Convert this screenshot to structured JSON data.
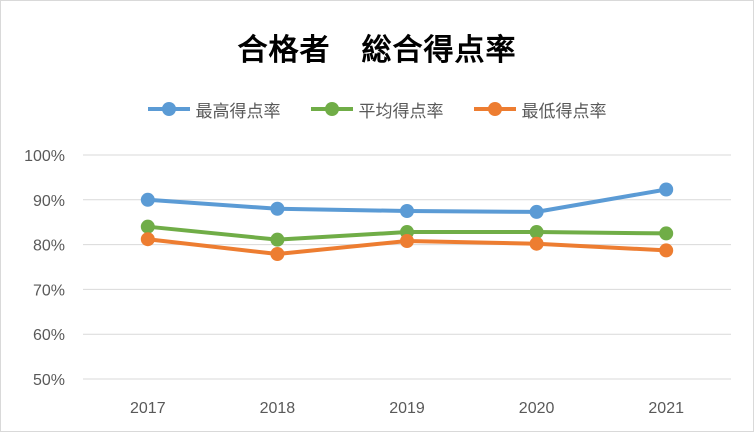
{
  "chart_data": {
    "type": "line",
    "title": "合格者　総合得点率",
    "categories": [
      "2017",
      "2018",
      "2019",
      "2020",
      "2021"
    ],
    "ylim": [
      50,
      100
    ],
    "yticks": [
      50,
      60,
      70,
      80,
      90,
      100
    ],
    "ytick_labels": [
      "50%",
      "60%",
      "70%",
      "80%",
      "90%",
      "100%"
    ],
    "grid": true,
    "legend_position": "top",
    "series": [
      {
        "name": "最高得点率",
        "color": "#5b9bd5",
        "values": [
          90.0,
          88.0,
          87.5,
          87.3,
          92.3
        ]
      },
      {
        "name": "平均得点率",
        "color": "#70ad47",
        "values": [
          84.0,
          81.1,
          82.8,
          82.8,
          82.5
        ]
      },
      {
        "name": "最低得点率",
        "color": "#ed7d31",
        "values": [
          81.2,
          77.9,
          80.8,
          80.2,
          78.7
        ]
      }
    ]
  }
}
